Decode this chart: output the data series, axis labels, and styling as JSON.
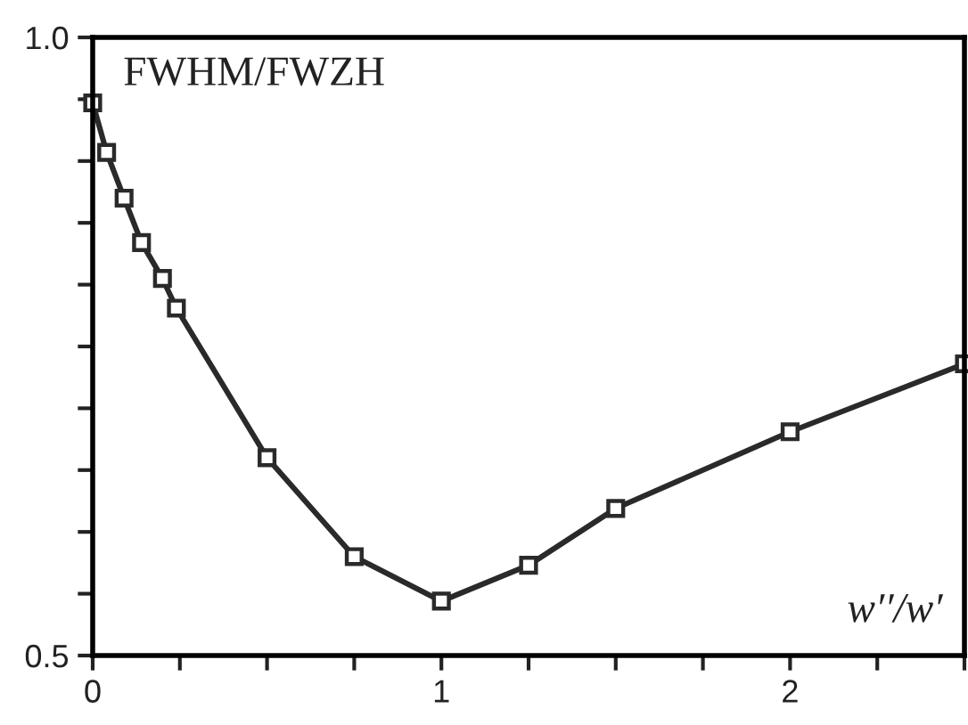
{
  "chart_data": {
    "type": "line",
    "ylabel": "FWHM/FWZH",
    "xlabel": "w′′/w′",
    "x": [
      0,
      0.04,
      0.09,
      0.14,
      0.2,
      0.24,
      0.5,
      0.75,
      1.0,
      1.25,
      1.5,
      2.0,
      2.5
    ],
    "series": [
      {
        "color": "#2a2a2a",
        "values": [
          0.947,
          0.907,
          0.87,
          0.834,
          0.805,
          0.781,
          0.66,
          0.58,
          0.544,
          0.573,
          0.619,
          0.681,
          0.736
        ]
      }
    ],
    "xlim": [
      0,
      2.5
    ],
    "ylim": [
      0.5,
      1.0
    ],
    "xticks": [
      0,
      {
        "value": 0.25,
        "label": null
      },
      {
        "value": 0.5,
        "label": null
      },
      {
        "value": 0.75,
        "label": null
      },
      1,
      {
        "value": 1.25,
        "label": null
      },
      {
        "value": 1.5,
        "label": null
      },
      {
        "value": 1.75,
        "label": null
      },
      2,
      {
        "value": 2.25,
        "label": null
      },
      {
        "value": 2.5,
        "label": null
      }
    ],
    "yticks": [
      0.5,
      {
        "value": 0.55,
        "label": null
      },
      {
        "value": 0.6,
        "label": null
      },
      {
        "value": 0.65,
        "label": null
      },
      {
        "value": 0.7,
        "label": null
      },
      {
        "value": 0.75,
        "label": null
      },
      {
        "value": 0.8,
        "label": null
      },
      {
        "value": 0.85,
        "label": null
      },
      {
        "value": 0.9,
        "label": null
      },
      {
        "value": 0.95,
        "label": null
      },
      {
        "value": 1.0,
        "label": "1.0"
      }
    ],
    "marker": "square",
    "line_style": "solid",
    "grid": false
  }
}
